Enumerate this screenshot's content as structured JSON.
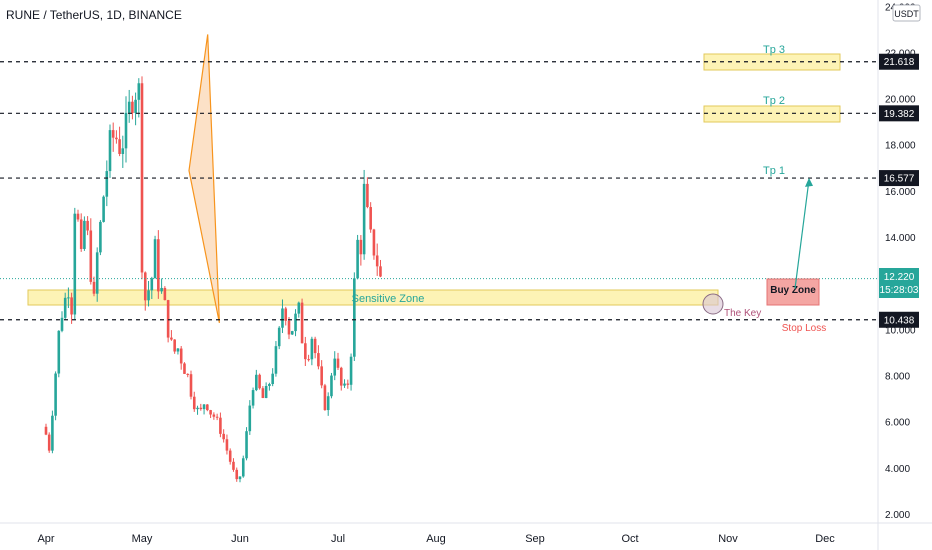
{
  "header": {
    "title": "RUNE / TetherUS, 1D, BINANCE"
  },
  "currency_badge": "USDT",
  "colors": {
    "up": "#26a69a",
    "down": "#ef5350",
    "wedge_fill": "#fbd7b4",
    "wedge_stroke": "#f7941d",
    "zone_fill": "#fdf3b5",
    "zone_stroke": "#e2c85a",
    "buy_fill": "#f4a6a3",
    "current_price_bg": "#26a69a",
    "label_bg": "#131722",
    "tp_text": "#26a69a",
    "stop_text": "#ef5350"
  },
  "chart_data": {
    "type": "candlestick",
    "symbol": "RUNE / TetherUS",
    "interval": "1D",
    "exchange": "BINANCE",
    "x_tick_labels": [
      "Apr",
      "May",
      "Jun",
      "Jul",
      "Aug",
      "Sep",
      "Oct",
      "Nov",
      "Dec"
    ],
    "y_tick_labels": [
      "2.000",
      "4.000",
      "6.000",
      "8.000",
      "10.000",
      "14.000",
      "16.000",
      "18.000",
      "20.000",
      "22.000",
      "24.000"
    ],
    "ylim": [
      1.5,
      24.2
    ],
    "price_levels": [
      {
        "name": "tp3-level",
        "value": 21.618,
        "label": "21.618"
      },
      {
        "name": "tp2-level",
        "value": 19.382,
        "label": "19.382"
      },
      {
        "name": "tp1-level",
        "value": 16.577,
        "label": "16.577"
      },
      {
        "name": "stop-level",
        "value": 10.438,
        "label": "10.438"
      }
    ],
    "current_price": {
      "value": 12.22,
      "label": "12.220",
      "countdown": "15:28:03"
    },
    "zones": [
      {
        "name": "sensitive-zone",
        "label": "Sensitive Zone",
        "from": 11.2,
        "to": 11.85
      },
      {
        "name": "buy-zone",
        "label": "Buy Zone",
        "from": 11.0,
        "to": 12.3
      },
      {
        "name": "tp3-zone",
        "label": "Tp 3",
        "from": 21.3,
        "to": 22.0
      },
      {
        "name": "tp2-zone",
        "label": "Tp 2",
        "from": 19.1,
        "to": 19.8
      }
    ],
    "annotations": [
      {
        "name": "tp1-label",
        "text": "Tp 1"
      },
      {
        "name": "the-key-label",
        "text": "The Key"
      },
      {
        "name": "stop-loss-label",
        "text": "Stop Loss"
      }
    ],
    "wedge_points": [
      [
        16.9,
        1.48
      ],
      [
        22.8,
        1.67
      ],
      [
        10.3,
        1.79
      ]
    ],
    "projection_arrow": {
      "from_price": 11.7,
      "to_price": 16.5
    },
    "price_path": [
      [
        0.0,
        5.8
      ],
      [
        0.04,
        5.4
      ],
      [
        0.07,
        4.8
      ],
      [
        0.1,
        6.5
      ],
      [
        0.14,
        8.5
      ],
      [
        0.18,
        10.5
      ],
      [
        0.22,
        11.0
      ],
      [
        0.26,
        12.0
      ],
      [
        0.3,
        11.0
      ],
      [
        0.33,
        15.5
      ],
      [
        0.37,
        14.5
      ],
      [
        0.4,
        13.0
      ],
      [
        0.44,
        15.0
      ],
      [
        0.48,
        13.5
      ],
      [
        0.53,
        11.0
      ],
      [
        0.56,
        13.0
      ],
      [
        0.6,
        14.5
      ],
      [
        0.65,
        16.5
      ],
      [
        0.7,
        18.0
      ],
      [
        0.75,
        18.5
      ],
      [
        0.8,
        18.0
      ],
      [
        0.85,
        18.3
      ],
      [
        0.9,
        19.5
      ],
      [
        0.95,
        20.5
      ],
      [
        1.0,
        20.3
      ],
      [
        1.03,
        13.5
      ],
      [
        1.05,
        10.5
      ],
      [
        1.08,
        12.0
      ],
      [
        1.12,
        11.5
      ],
      [
        1.16,
        13.8
      ],
      [
        1.2,
        12.0
      ],
      [
        1.25,
        11.5
      ],
      [
        1.3,
        10.0
      ],
      [
        1.35,
        9.0
      ],
      [
        1.4,
        9.2
      ],
      [
        1.45,
        8.5
      ],
      [
        1.5,
        8.0
      ],
      [
        1.55,
        7.0
      ],
      [
        1.62,
        6.3
      ],
      [
        1.68,
        7.0
      ],
      [
        1.72,
        6.5
      ],
      [
        1.78,
        6.2
      ],
      [
        1.85,
        5.5
      ],
      [
        1.92,
        4.5
      ],
      [
        1.97,
        3.8
      ],
      [
        2.0,
        3.4
      ],
      [
        2.03,
        3.6
      ],
      [
        2.06,
        4.2
      ],
      [
        2.1,
        5.5
      ],
      [
        2.14,
        7.0
      ],
      [
        2.18,
        8.0
      ],
      [
        2.22,
        7.5
      ],
      [
        2.27,
        7.0
      ],
      [
        2.32,
        7.5
      ],
      [
        2.38,
        8.5
      ],
      [
        2.44,
        10.0
      ],
      [
        2.48,
        11.5
      ],
      [
        2.52,
        10.0
      ],
      [
        2.56,
        10.0
      ],
      [
        2.6,
        10.5
      ],
      [
        2.62,
        11.5
      ],
      [
        2.64,
        10.5
      ],
      [
        2.68,
        9.2
      ],
      [
        2.72,
        8.8
      ],
      [
        2.77,
        9.8
      ],
      [
        2.8,
        9.0
      ],
      [
        2.84,
        8.0
      ],
      [
        2.88,
        7.0
      ],
      [
        2.92,
        6.5
      ],
      [
        2.96,
        8.0
      ],
      [
        3.0,
        9.0
      ],
      [
        3.04,
        8.0
      ],
      [
        3.08,
        7.3
      ],
      [
        3.12,
        7.5
      ],
      [
        3.15,
        8.0
      ],
      [
        3.18,
        10.0
      ],
      [
        3.21,
        13.0
      ],
      [
        3.24,
        14.0
      ],
      [
        3.26,
        13.0
      ],
      [
        3.28,
        15.0
      ],
      [
        3.3,
        16.0
      ],
      [
        3.33,
        15.0
      ],
      [
        3.36,
        14.0
      ],
      [
        3.4,
        13.5
      ],
      [
        3.43,
        13.0
      ],
      [
        3.46,
        12.2
      ]
    ]
  }
}
